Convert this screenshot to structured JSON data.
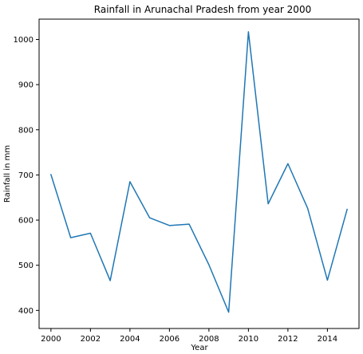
{
  "chart_data": {
    "type": "line",
    "title": "Rainfall in Arunachal Pradesh from year 2000",
    "xlabel": "Year",
    "ylabel": "Rainfall in mm",
    "xlim": [
      1999.4,
      2015.6
    ],
    "ylim": [
      360,
      1045
    ],
    "xticks": [
      2000,
      2002,
      2004,
      2006,
      2008,
      2010,
      2012,
      2014
    ],
    "yticks": [
      400,
      500,
      600,
      700,
      800,
      900,
      1000
    ],
    "grid": false,
    "series": [
      {
        "color": "#1f77b4",
        "x": [
          2000,
          2001,
          2002,
          2003,
          2004,
          2005,
          2006,
          2007,
          2008,
          2009,
          2010,
          2011,
          2012,
          2013,
          2014,
          2015
        ],
        "y": [
          701,
          561,
          571,
          466,
          685,
          605,
          588,
          591,
          501,
          396,
          1017,
          636,
          725,
          626,
          467,
          624
        ]
      }
    ]
  }
}
